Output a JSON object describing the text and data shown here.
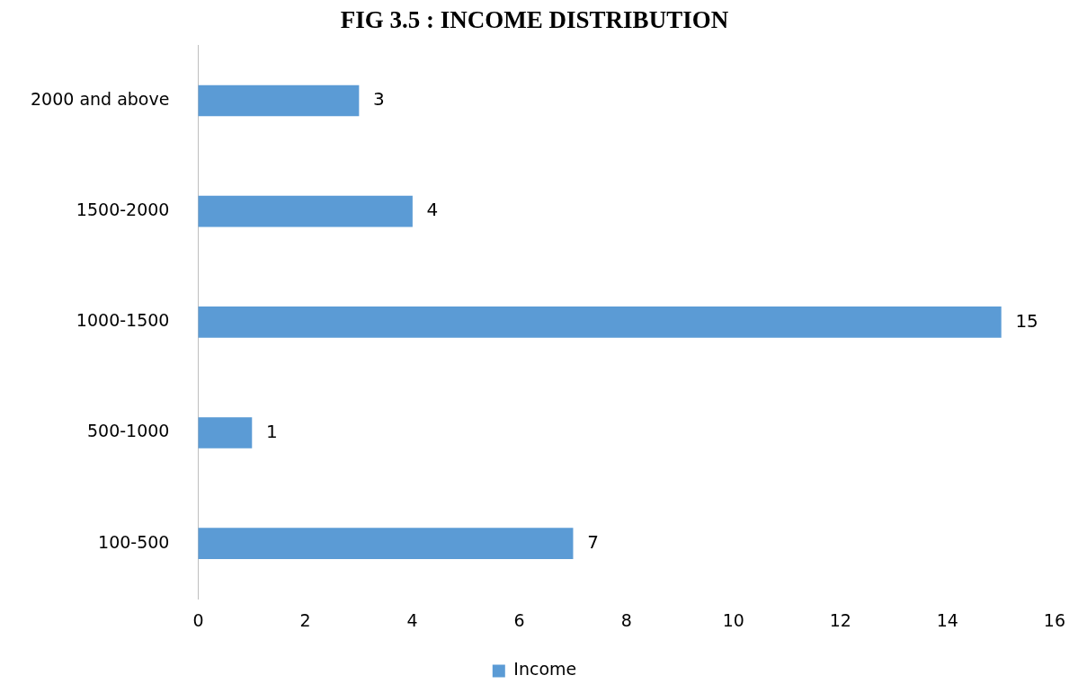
{
  "chart_data": {
    "type": "bar",
    "orientation": "horizontal",
    "title": "FIG 3.5 : INCOME DISTRIBUTION",
    "categories": [
      "2000 and above",
      "1500-2000",
      "1000-1500",
      "500-1000",
      "100-500"
    ],
    "series": [
      {
        "name": "Income",
        "color": "#5b9bd5",
        "values": [
          3,
          4,
          15,
          1,
          7
        ]
      }
    ],
    "xlim": [
      0,
      16
    ],
    "xticks": [
      0,
      2,
      4,
      6,
      8,
      10,
      12,
      14,
      16
    ],
    "data_labels": true,
    "legend": "bottom"
  }
}
